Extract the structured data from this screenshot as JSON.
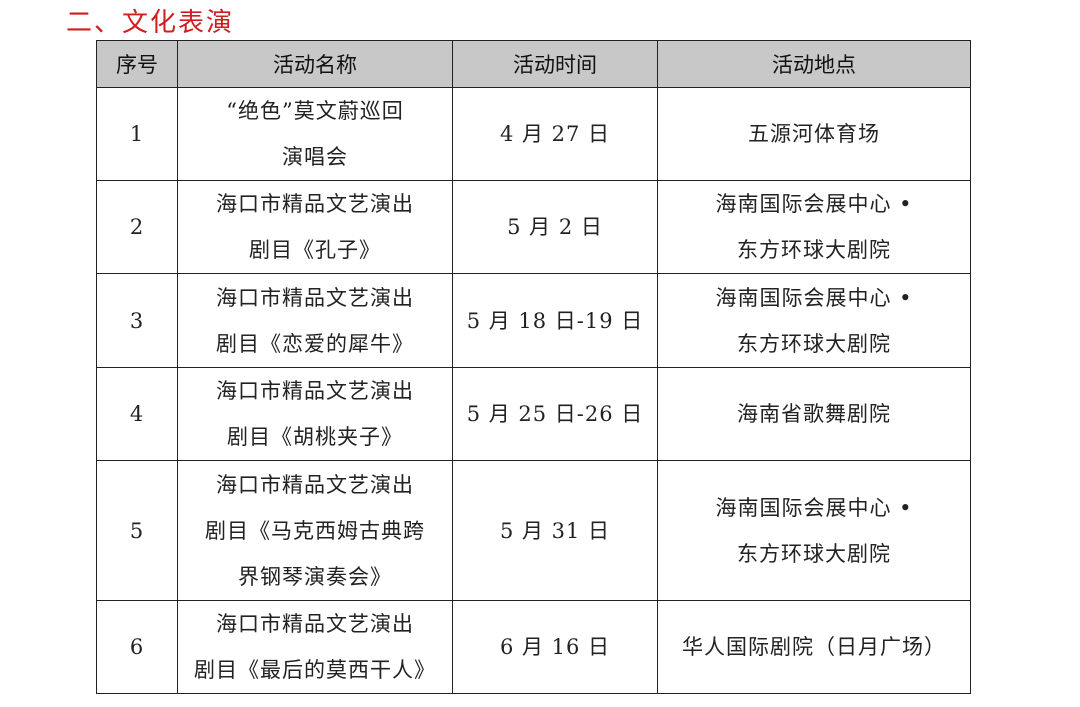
{
  "title": "二、文化表演",
  "table": {
    "headers": [
      "序号",
      "活动名称",
      "活动时间",
      "活动地点"
    ],
    "rows": [
      {
        "no": "1",
        "name": [
          "“绝色”莫文蔚巡回",
          "演唱会"
        ],
        "time": "4 月 27 日",
        "place": [
          "五源河体育场"
        ]
      },
      {
        "no": "2",
        "name": [
          "海口市精品文艺演出",
          "剧目《孔子》"
        ],
        "time": "5 月 2 日",
        "place": [
          "海南国际会展中心 •",
          "东方环球大剧院"
        ]
      },
      {
        "no": "3",
        "name": [
          "海口市精品文艺演出",
          "剧目《恋爱的犀牛》"
        ],
        "time": "5 月 18 日-19 日",
        "place": [
          "海南国际会展中心 •",
          "东方环球大剧院"
        ]
      },
      {
        "no": "4",
        "name": [
          "海口市精品文艺演出",
          "剧目《胡桃夹子》"
        ],
        "time": "5 月 25 日-26 日",
        "place": [
          "海南省歌舞剧院"
        ]
      },
      {
        "no": "5",
        "name": [
          "海口市精品文艺演出",
          "剧目《马克西姆古典跨",
          "界钢琴演奏会》"
        ],
        "time": "5 月 31 日",
        "place": [
          "海南国际会展中心 •",
          "东方环球大剧院"
        ]
      },
      {
        "no": "6",
        "name": [
          "海口市精品文艺演出",
          "剧目《最后的莫西干人》"
        ],
        "time": "6 月 16 日",
        "place": [
          "华人国际剧院（日月广场）"
        ]
      }
    ]
  }
}
